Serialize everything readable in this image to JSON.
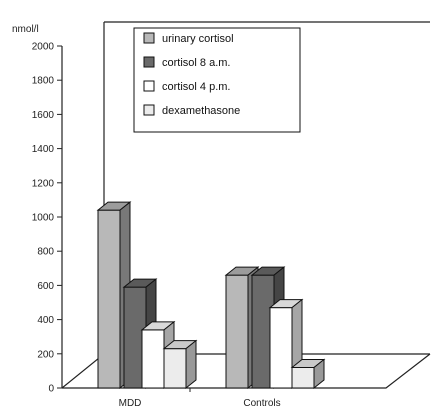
{
  "chart_data": {
    "type": "bar",
    "unit_label": "nmol/l",
    "categories": [
      "MDD",
      "Controls"
    ],
    "ylim": [
      0,
      2000
    ],
    "yticks": [
      0,
      200,
      400,
      600,
      800,
      1000,
      1200,
      1400,
      1600,
      1800,
      2000
    ],
    "series": [
      {
        "name": "urinary  cortisol",
        "color": "#b8b8b8",
        "values": [
          1040,
          660
        ]
      },
      {
        "name": "cortisol  8  a.m.",
        "color": "#6a6a6a",
        "values": [
          590,
          660
        ]
      },
      {
        "name": "cortisol  4  p.m.",
        "color": "#ffffff",
        "values": [
          340,
          470
        ]
      },
      {
        "name": "dexamethasone",
        "color": "#ececec",
        "values": [
          230,
          120
        ]
      }
    ],
    "legend_position": "top",
    "grid": false
  }
}
